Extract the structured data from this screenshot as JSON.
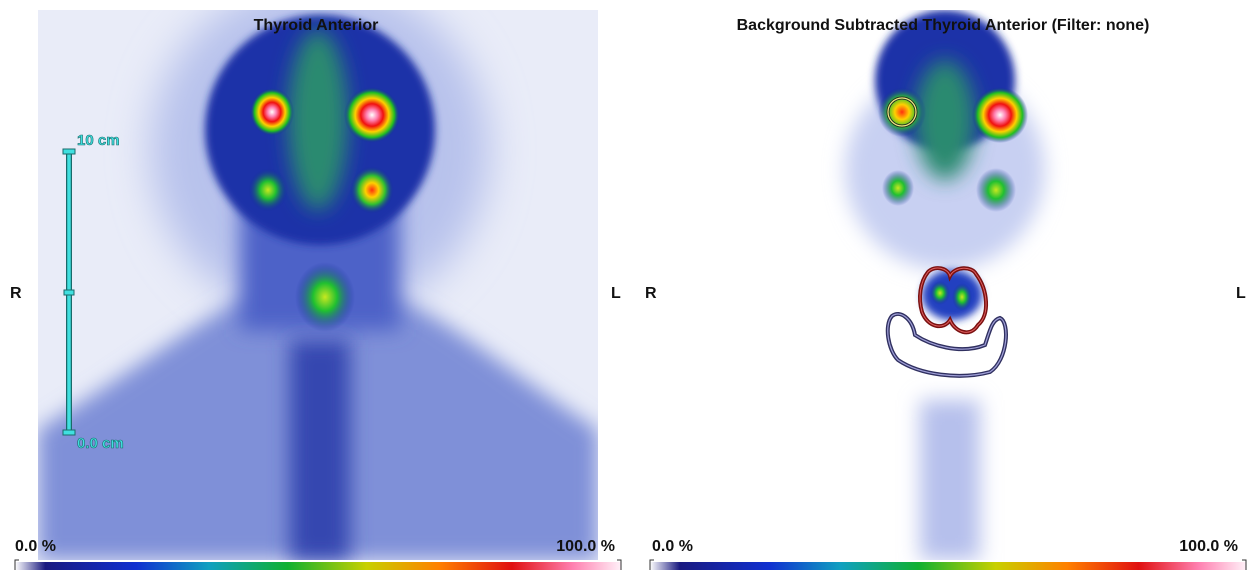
{
  "panels": [
    {
      "title": "Thyroid Anterior",
      "orientation": {
        "right": "R",
        "left": "L"
      },
      "scale": {
        "max": "10 cm",
        "min": "0.0 cm"
      },
      "colorbar": {
        "min": "0.0 %",
        "max": "100.0 %"
      }
    },
    {
      "title": "Background Subtracted Thyroid Anterior (Filter: none)",
      "orientation": {
        "right": "R",
        "left": "L"
      },
      "colorbar": {
        "min": "0.0 %",
        "max": "100.0 %"
      }
    }
  ]
}
